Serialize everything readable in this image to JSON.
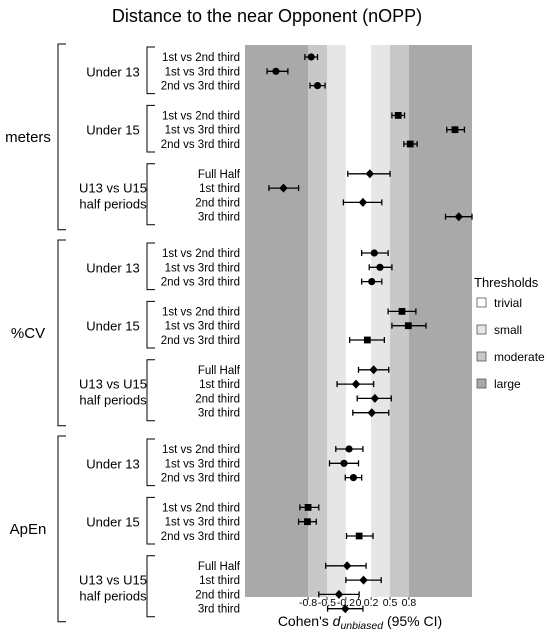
{
  "chart_data": {
    "type": "forest",
    "title": "Distance to the near Opponent (nOPP)",
    "xlabel": {
      "prefix": "Cohen's ",
      "symbol": "d",
      "subscript": "unbiased",
      "suffix": " (95% CI)"
    },
    "xlim": [
      -1.8,
      1.8
    ],
    "ticks": [
      {
        "value": -0.8,
        "label": "-0.8"
      },
      {
        "value": -0.5,
        "label": "-0.5"
      },
      {
        "value": -0.2,
        "label": "-0.2"
      },
      {
        "value": 0,
        "label": "0"
      },
      {
        "value": 0.2,
        "label": "0.2"
      },
      {
        "value": 0.5,
        "label": "0.5"
      },
      {
        "value": 0.8,
        "label": "0.8"
      }
    ],
    "legend": {
      "title": "Thresholds",
      "position": "right",
      "items": [
        {
          "label": "trivial",
          "color": "#ffffff"
        },
        {
          "label": "small",
          "color": "#e6e6e6"
        },
        {
          "label": "moderate",
          "color": "#c8c8c8"
        },
        {
          "label": "large",
          "color": "#a9a9a9"
        }
      ]
    },
    "thresholds": [
      {
        "label": "trivial",
        "from": -0.2,
        "to": 0.2,
        "color": "#ffffff"
      },
      {
        "label": "small",
        "from": -0.5,
        "to": -0.2,
        "color": "#e6e6e6"
      },
      {
        "label": "small",
        "from": 0.2,
        "to": 0.5,
        "color": "#e6e6e6"
      },
      {
        "label": "moderate",
        "from": -0.8,
        "to": -0.5,
        "color": "#c8c8c8"
      },
      {
        "label": "moderate",
        "from": 0.5,
        "to": 0.8,
        "color": "#c8c8c8"
      },
      {
        "label": "large",
        "from": -1.8,
        "to": -0.8,
        "color": "#a9a9a9"
      },
      {
        "label": "large",
        "from": 0.8,
        "to": 1.8,
        "color": "#a9a9a9"
      }
    ],
    "metrics": [
      {
        "name": "meters",
        "groups": [
          {
            "name": [
              "Under 13"
            ],
            "rows": [
              {
                "label": "1st vs 2nd third",
                "d": -0.75,
                "lo": -0.85,
                "hi": -0.65,
                "marker": "circle"
              },
              {
                "label": "1st vs 3rd third",
                "d": -1.31,
                "lo": -1.45,
                "hi": -1.12,
                "marker": "circle"
              },
              {
                "label": "2nd vs 3rd third",
                "d": -0.65,
                "lo": -0.77,
                "hi": -0.53,
                "marker": "circle"
              }
            ]
          },
          {
            "name": [
              "Under 15"
            ],
            "rows": [
              {
                "label": "1st vs 2nd third",
                "d": 0.63,
                "lo": 0.53,
                "hi": 0.73,
                "marker": "square"
              },
              {
                "label": "1st vs 3rd third",
                "d": 1.53,
                "lo": 1.4,
                "hi": 1.68,
                "marker": "square"
              },
              {
                "label": "2nd vs 3rd third",
                "d": 0.82,
                "lo": 0.72,
                "hi": 0.93,
                "marker": "square"
              }
            ]
          },
          {
            "name": [
              "U13 vs U15",
              "half periods"
            ],
            "rows": [
              {
                "label": "Full Half",
                "d": 0.18,
                "lo": -0.17,
                "hi": 0.5,
                "marker": "diamond"
              },
              {
                "label": "1st third",
                "d": -1.19,
                "lo": -1.42,
                "hi": -0.95,
                "marker": "diamond"
              },
              {
                "label": "2nd third",
                "d": 0.07,
                "lo": -0.24,
                "hi": 0.37,
                "marker": "diamond"
              },
              {
                "label": "3rd third",
                "d": 1.59,
                "lo": 1.38,
                "hi": 1.8,
                "marker": "diamond"
              }
            ]
          }
        ]
      },
      {
        "name": "%CV",
        "groups": [
          {
            "name": [
              "Under 13"
            ],
            "rows": [
              {
                "label": "1st vs 2nd third",
                "d": 0.25,
                "lo": 0.05,
                "hi": 0.47,
                "marker": "circle"
              },
              {
                "label": "1st vs 3rd third",
                "d": 0.34,
                "lo": 0.17,
                "hi": 0.53,
                "marker": "circle"
              },
              {
                "label": "2nd vs 3rd third",
                "d": 0.21,
                "lo": 0.05,
                "hi": 0.37,
                "marker": "circle"
              }
            ]
          },
          {
            "name": [
              "Under 15"
            ],
            "rows": [
              {
                "label": "1st vs 2nd third",
                "d": 0.69,
                "lo": 0.47,
                "hi": 0.91,
                "marker": "square"
              },
              {
                "label": "1st vs 3rd third",
                "d": 0.79,
                "lo": 0.53,
                "hi": 1.07,
                "marker": "square"
              },
              {
                "label": "2nd vs 3rd third",
                "d": 0.14,
                "lo": -0.14,
                "hi": 0.41,
                "marker": "square"
              }
            ]
          },
          {
            "name": [
              "U13 vs U15",
              "half periods"
            ],
            "rows": [
              {
                "label": "Full Half",
                "d": 0.24,
                "lo": 0.0,
                "hi": 0.48,
                "marker": "diamond"
              },
              {
                "label": "1st third",
                "d": -0.04,
                "lo": -0.34,
                "hi": 0.24,
                "marker": "diamond"
              },
              {
                "label": "2nd third",
                "d": 0.26,
                "lo": -0.02,
                "hi": 0.52,
                "marker": "diamond"
              },
              {
                "label": "3rd third",
                "d": 0.21,
                "lo": -0.09,
                "hi": 0.48,
                "marker": "diamond"
              }
            ]
          }
        ]
      },
      {
        "name": "ApEn",
        "groups": [
          {
            "name": [
              "Under 13"
            ],
            "rows": [
              {
                "label": "1st vs 2nd third",
                "d": -0.15,
                "lo": -0.36,
                "hi": 0.07,
                "marker": "circle"
              },
              {
                "label": "1st vs 3rd third",
                "d": -0.23,
                "lo": -0.46,
                "hi": 0.0,
                "marker": "circle"
              },
              {
                "label": "2nd vs 3rd third",
                "d": -0.08,
                "lo": -0.21,
                "hi": 0.05,
                "marker": "circle"
              }
            ]
          },
          {
            "name": [
              "Under 15"
            ],
            "rows": [
              {
                "label": "1st vs 2nd third",
                "d": -0.8,
                "lo": -0.93,
                "hi": -0.63,
                "marker": "square"
              },
              {
                "label": "1st vs 3rd third",
                "d": -0.81,
                "lo": -0.95,
                "hi": -0.67,
                "marker": "square"
              },
              {
                "label": "2nd vs 3rd third",
                "d": 0.01,
                "lo": -0.19,
                "hi": 0.23,
                "marker": "square"
              }
            ]
          },
          {
            "name": [
              "U13 vs U15",
              "half periods"
            ],
            "rows": [
              {
                "label": "Full Half",
                "d": -0.18,
                "lo": -0.52,
                "hi": 0.12,
                "marker": "diamond"
              },
              {
                "label": "1st third",
                "d": 0.08,
                "lo": -0.2,
                "hi": 0.36,
                "marker": "diamond"
              },
              {
                "label": "2nd third",
                "d": -0.31,
                "lo": -0.63,
                "hi": 0.01,
                "marker": "diamond"
              },
              {
                "label": "3rd third",
                "d": -0.21,
                "lo": -0.49,
                "hi": 0.07,
                "marker": "diamond"
              }
            ]
          }
        ]
      }
    ]
  }
}
